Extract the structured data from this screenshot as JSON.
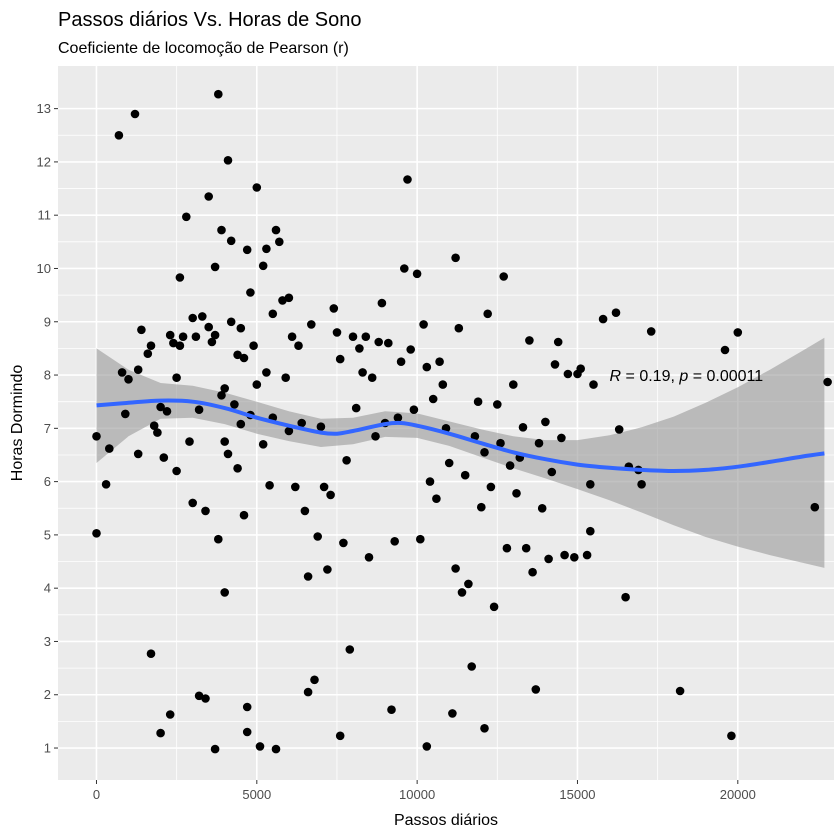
{
  "chart_data": {
    "type": "scatter",
    "title": "Passos diários Vs. Horas de Sono",
    "subtitle": "Coeficiente de locomoção de Pearson (r)",
    "xlabel": "Passos diários",
    "ylabel": "Horas Dormindo",
    "xlim": [
      -1200,
      23000
    ],
    "ylim": [
      0.4,
      13.8
    ],
    "x_ticks": [
      0,
      5000,
      10000,
      15000,
      20000
    ],
    "x_tick_labels": [
      "0",
      "5000",
      "10000",
      "15000",
      "20000"
    ],
    "y_ticks": [
      1,
      2,
      3,
      4,
      5,
      6,
      7,
      8,
      9,
      10,
      11,
      12,
      13
    ],
    "y_tick_labels": [
      "1",
      "2",
      "3",
      "4",
      "5",
      "6",
      "7",
      "8",
      "9",
      "10",
      "11",
      "12",
      "13"
    ],
    "grid": true,
    "annotation": {
      "R": "0.19",
      "p": "0.00011",
      "x": 16000,
      "y": 8.0
    },
    "colors": {
      "points": "#000000",
      "smooth": "#3366ff",
      "ribbon": "#999999",
      "panel": "#ebebeb",
      "grid": "#ffffff"
    },
    "smooth": [
      [
        0,
        7.43
      ],
      [
        1000,
        7.48
      ],
      [
        2000,
        7.52
      ],
      [
        3000,
        7.5
      ],
      [
        4000,
        7.38
      ],
      [
        5000,
        7.2
      ],
      [
        6000,
        7.05
      ],
      [
        7000,
        6.92
      ],
      [
        7500,
        6.9
      ],
      [
        8000,
        6.95
      ],
      [
        9000,
        7.08
      ],
      [
        9500,
        7.1
      ],
      [
        10000,
        7.05
      ],
      [
        11000,
        6.9
      ],
      [
        12000,
        6.72
      ],
      [
        13000,
        6.55
      ],
      [
        14000,
        6.42
      ],
      [
        15000,
        6.32
      ],
      [
        16000,
        6.26
      ],
      [
        17000,
        6.22
      ],
      [
        18000,
        6.2
      ],
      [
        19000,
        6.22
      ],
      [
        20000,
        6.28
      ],
      [
        21000,
        6.37
      ],
      [
        22000,
        6.47
      ],
      [
        22700,
        6.53
      ]
    ],
    "ribbon_upper": [
      [
        0,
        8.5
      ],
      [
        1000,
        8.1
      ],
      [
        2000,
        7.85
      ],
      [
        3000,
        7.8
      ],
      [
        4000,
        7.67
      ],
      [
        5000,
        7.5
      ],
      [
        6000,
        7.32
      ],
      [
        7000,
        7.18
      ],
      [
        8000,
        7.2
      ],
      [
        9000,
        7.32
      ],
      [
        10000,
        7.28
      ],
      [
        11000,
        7.13
      ],
      [
        12000,
        6.98
      ],
      [
        13000,
        6.85
      ],
      [
        14000,
        6.78
      ],
      [
        15000,
        6.78
      ],
      [
        16000,
        6.87
      ],
      [
        17000,
        7.02
      ],
      [
        18000,
        7.22
      ],
      [
        19000,
        7.48
      ],
      [
        20000,
        7.77
      ],
      [
        21000,
        8.1
      ],
      [
        22000,
        8.45
      ],
      [
        22700,
        8.7
      ]
    ],
    "ribbon_lower": [
      [
        0,
        6.35
      ],
      [
        1000,
        6.85
      ],
      [
        2000,
        7.18
      ],
      [
        3000,
        7.2
      ],
      [
        4000,
        7.08
      ],
      [
        5000,
        6.9
      ],
      [
        6000,
        6.76
      ],
      [
        7000,
        6.65
      ],
      [
        8000,
        6.7
      ],
      [
        9000,
        6.84
      ],
      [
        10000,
        6.82
      ],
      [
        11000,
        6.67
      ],
      [
        12000,
        6.46
      ],
      [
        13000,
        6.25
      ],
      [
        14000,
        6.06
      ],
      [
        15000,
        5.86
      ],
      [
        16000,
        5.65
      ],
      [
        17000,
        5.42
      ],
      [
        18000,
        5.18
      ],
      [
        19000,
        4.96
      ],
      [
        20000,
        4.78
      ],
      [
        21000,
        4.62
      ],
      [
        22000,
        4.48
      ],
      [
        22700,
        4.38
      ]
    ],
    "points": [
      [
        0,
        5.03
      ],
      [
        0,
        6.85
      ],
      [
        300,
        5.95
      ],
      [
        400,
        6.62
      ],
      [
        700,
        12.5
      ],
      [
        800,
        8.05
      ],
      [
        900,
        7.27
      ],
      [
        1000,
        7.92
      ],
      [
        1200,
        12.9
      ],
      [
        1300,
        8.1
      ],
      [
        1300,
        6.52
      ],
      [
        1400,
        8.85
      ],
      [
        1600,
        8.4
      ],
      [
        1700,
        8.55
      ],
      [
        1700,
        2.77
      ],
      [
        1800,
        7.05
      ],
      [
        1900,
        6.92
      ],
      [
        2000,
        7.4
      ],
      [
        2000,
        1.28
      ],
      [
        2100,
        6.45
      ],
      [
        2200,
        7.32
      ],
      [
        2300,
        8.75
      ],
      [
        2300,
        1.63
      ],
      [
        2400,
        8.6
      ],
      [
        2500,
        7.95
      ],
      [
        2500,
        6.2
      ],
      [
        2600,
        8.55
      ],
      [
        2600,
        9.83
      ],
      [
        2700,
        8.72
      ],
      [
        2800,
        10.97
      ],
      [
        2900,
        6.75
      ],
      [
        3000,
        9.07
      ],
      [
        3000,
        5.6
      ],
      [
        3100,
        8.72
      ],
      [
        3200,
        7.35
      ],
      [
        3200,
        1.98
      ],
      [
        3300,
        9.1
      ],
      [
        3400,
        5.45
      ],
      [
        3400,
        1.93
      ],
      [
        3500,
        11.35
      ],
      [
        3500,
        8.9
      ],
      [
        3600,
        8.62
      ],
      [
        3700,
        8.75
      ],
      [
        3700,
        10.03
      ],
      [
        3700,
        0.98
      ],
      [
        3800,
        13.27
      ],
      [
        3800,
        4.92
      ],
      [
        3900,
        7.62
      ],
      [
        3900,
        10.72
      ],
      [
        4000,
        6.75
      ],
      [
        4000,
        7.75
      ],
      [
        4000,
        3.92
      ],
      [
        4100,
        12.03
      ],
      [
        4100,
        6.52
      ],
      [
        4200,
        10.52
      ],
      [
        4200,
        9.0
      ],
      [
        4300,
        7.45
      ],
      [
        4400,
        8.38
      ],
      [
        4400,
        6.25
      ],
      [
        4500,
        8.88
      ],
      [
        4500,
        7.08
      ],
      [
        4600,
        5.37
      ],
      [
        4600,
        8.32
      ],
      [
        4700,
        10.35
      ],
      [
        4700,
        1.77
      ],
      [
        4700,
        1.3
      ],
      [
        4800,
        9.55
      ],
      [
        4800,
        7.25
      ],
      [
        4900,
        8.55
      ],
      [
        5000,
        11.52
      ],
      [
        5000,
        7.82
      ],
      [
        5100,
        1.03
      ],
      [
        5200,
        10.05
      ],
      [
        5200,
        6.7
      ],
      [
        5300,
        8.05
      ],
      [
        5300,
        10.37
      ],
      [
        5400,
        5.93
      ],
      [
        5500,
        9.15
      ],
      [
        5500,
        7.2
      ],
      [
        5600,
        10.72
      ],
      [
        5600,
        0.98
      ],
      [
        5700,
        10.5
      ],
      [
        5800,
        9.4
      ],
      [
        5900,
        7.95
      ],
      [
        6000,
        9.45
      ],
      [
        6000,
        6.95
      ],
      [
        6100,
        8.72
      ],
      [
        6200,
        5.9
      ],
      [
        6300,
        8.55
      ],
      [
        6400,
        7.1
      ],
      [
        6500,
        5.45
      ],
      [
        6600,
        4.22
      ],
      [
        6600,
        2.05
      ],
      [
        6700,
        8.95
      ],
      [
        6800,
        2.28
      ],
      [
        6900,
        4.97
      ],
      [
        7000,
        7.03
      ],
      [
        7100,
        5.9
      ],
      [
        7200,
        4.35
      ],
      [
        7300,
        5.75
      ],
      [
        7400,
        9.25
      ],
      [
        7500,
        8.8
      ],
      [
        7600,
        8.3
      ],
      [
        7600,
        1.23
      ],
      [
        7700,
        4.85
      ],
      [
        7800,
        6.4
      ],
      [
        7900,
        2.85
      ],
      [
        8000,
        8.72
      ],
      [
        8100,
        7.38
      ],
      [
        8200,
        8.5
      ],
      [
        8300,
        8.05
      ],
      [
        8400,
        8.72
      ],
      [
        8500,
        4.58
      ],
      [
        8600,
        7.95
      ],
      [
        8700,
        6.85
      ],
      [
        8800,
        8.62
      ],
      [
        8900,
        9.35
      ],
      [
        9000,
        7.1
      ],
      [
        9100,
        8.6
      ],
      [
        9200,
        1.72
      ],
      [
        9300,
        4.88
      ],
      [
        9400,
        7.2
      ],
      [
        9500,
        8.25
      ],
      [
        9600,
        10.0
      ],
      [
        9700,
        11.67
      ],
      [
        9800,
        8.48
      ],
      [
        9900,
        7.35
      ],
      [
        10000,
        9.9
      ],
      [
        10100,
        4.92
      ],
      [
        10200,
        8.95
      ],
      [
        10300,
        8.15
      ],
      [
        10300,
        1.03
      ],
      [
        10400,
        6.0
      ],
      [
        10500,
        7.55
      ],
      [
        10600,
        5.68
      ],
      [
        10700,
        8.25
      ],
      [
        10800,
        7.82
      ],
      [
        10900,
        7.0
      ],
      [
        11000,
        6.35
      ],
      [
        11100,
        1.65
      ],
      [
        11200,
        10.2
      ],
      [
        11200,
        4.37
      ],
      [
        11300,
        8.88
      ],
      [
        11400,
        3.92
      ],
      [
        11500,
        6.12
      ],
      [
        11600,
        4.08
      ],
      [
        11700,
        2.53
      ],
      [
        11800,
        6.85
      ],
      [
        11900,
        7.5
      ],
      [
        12000,
        5.52
      ],
      [
        12100,
        6.55
      ],
      [
        12100,
        1.37
      ],
      [
        12200,
        9.15
      ],
      [
        12300,
        5.9
      ],
      [
        12400,
        3.65
      ],
      [
        12500,
        7.45
      ],
      [
        12600,
        6.72
      ],
      [
        12700,
        9.85
      ],
      [
        12800,
        4.75
      ],
      [
        12900,
        6.3
      ],
      [
        13000,
        7.82
      ],
      [
        13100,
        5.78
      ],
      [
        13200,
        6.45
      ],
      [
        13300,
        7.02
      ],
      [
        13400,
        4.75
      ],
      [
        13500,
        8.65
      ],
      [
        13600,
        4.3
      ],
      [
        13700,
        2.1
      ],
      [
        13800,
        6.72
      ],
      [
        13900,
        5.5
      ],
      [
        14000,
        7.12
      ],
      [
        14100,
        4.55
      ],
      [
        14200,
        6.18
      ],
      [
        14300,
        8.2
      ],
      [
        14400,
        8.62
      ],
      [
        14500,
        6.82
      ],
      [
        14600,
        4.62
      ],
      [
        14700,
        8.02
      ],
      [
        14900,
        4.58
      ],
      [
        15000,
        8.02
      ],
      [
        15100,
        8.12
      ],
      [
        15300,
        4.62
      ],
      [
        15400,
        5.07
      ],
      [
        15400,
        5.95
      ],
      [
        15500,
        7.82
      ],
      [
        15800,
        9.05
      ],
      [
        16200,
        9.17
      ],
      [
        16300,
        6.98
      ],
      [
        16500,
        3.83
      ],
      [
        16600,
        6.28
      ],
      [
        16900,
        6.22
      ],
      [
        17000,
        5.95
      ],
      [
        17300,
        8.82
      ],
      [
        18200,
        2.07
      ],
      [
        19600,
        8.47
      ],
      [
        19800,
        1.23
      ],
      [
        20000,
        8.8
      ],
      [
        22400,
        5.52
      ],
      [
        22800,
        7.87
      ]
    ]
  }
}
